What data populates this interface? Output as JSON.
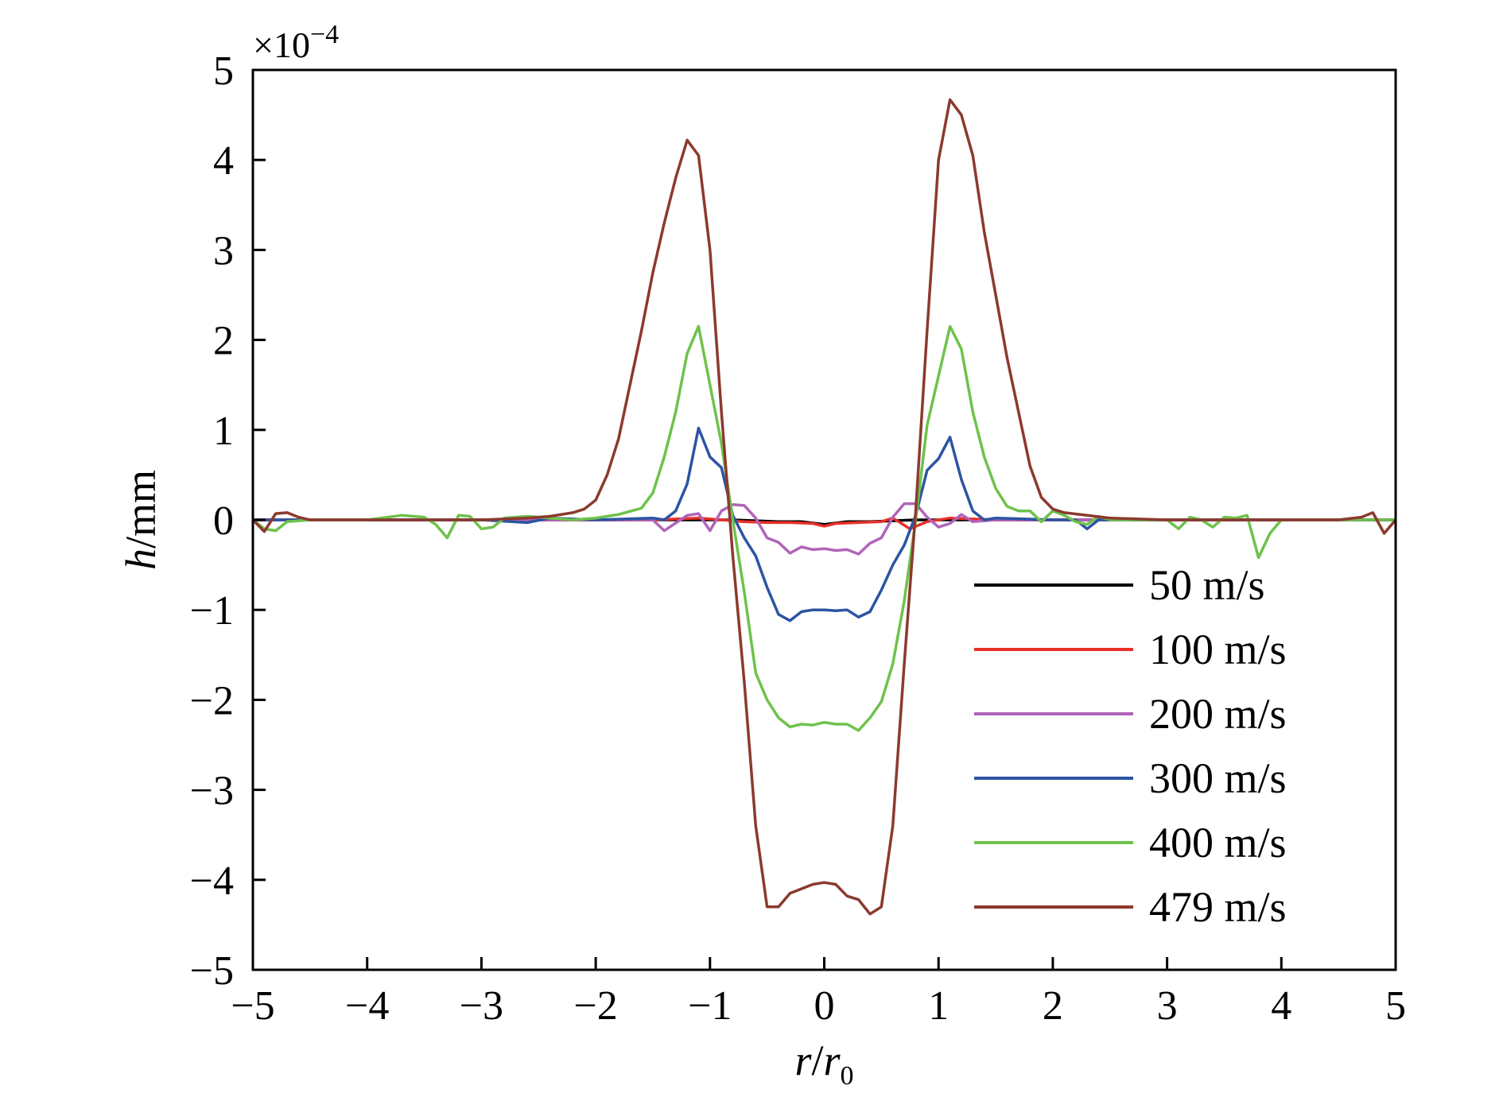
{
  "chart_data": {
    "type": "line",
    "xlabel": {
      "main": "r",
      "sep": "/",
      "sub_main": "r",
      "subscript": "0"
    },
    "ylabel": {
      "main": "h",
      "unit": "/mm"
    },
    "y_scale_note": {
      "base": "×10",
      "exponent": "−4"
    },
    "xlim": [
      -5,
      5
    ],
    "ylim": [
      -5,
      5
    ],
    "x_ticks": [
      -5,
      -4,
      -3,
      -2,
      -1,
      0,
      1,
      2,
      3,
      4,
      5
    ],
    "x_tick_labels": [
      "−5",
      "−4",
      "−3",
      "−2",
      "−1",
      "0",
      "1",
      "2",
      "3",
      "4",
      "5"
    ],
    "y_ticks": [
      -5,
      -4,
      -3,
      -2,
      -1,
      0,
      1,
      2,
      3,
      4,
      5
    ],
    "y_tick_labels": [
      "−5",
      "−4",
      "−3",
      "−2",
      "−1",
      "0",
      "1",
      "2",
      "3",
      "4",
      "5"
    ],
    "grid": false,
    "legend_position": "lower-right",
    "series": [
      {
        "name": "50 m/s",
        "color": "#000000",
        "points": [
          [
            -5,
            0
          ],
          [
            -4,
            0
          ],
          [
            -3,
            0
          ],
          [
            -2,
            0
          ],
          [
            -1.5,
            0
          ],
          [
            -1,
            0
          ],
          [
            -0.8,
            0.0
          ],
          [
            -0.6,
            -0.01
          ],
          [
            -0.4,
            -0.02
          ],
          [
            -0.2,
            -0.02
          ],
          [
            0,
            -0.05
          ],
          [
            0.2,
            -0.02
          ],
          [
            0.4,
            -0.02
          ],
          [
            0.6,
            -0.01
          ],
          [
            0.8,
            0
          ],
          [
            1,
            0
          ],
          [
            1.5,
            0
          ],
          [
            2,
            0
          ],
          [
            3,
            0
          ],
          [
            4,
            0
          ],
          [
            5,
            0
          ]
        ]
      },
      {
        "name": "100 m/s",
        "color": "#e8302a",
        "points": [
          [
            -5,
            0
          ],
          [
            -4,
            0
          ],
          [
            -3,
            0
          ],
          [
            -2,
            0
          ],
          [
            -1.5,
            0
          ],
          [
            -1.1,
            0.02
          ],
          [
            -0.9,
            0.0
          ],
          [
            -0.7,
            -0.02
          ],
          [
            -0.5,
            -0.03
          ],
          [
            -0.3,
            -0.03
          ],
          [
            -0.1,
            -0.04
          ],
          [
            0,
            -0.07
          ],
          [
            0.1,
            -0.04
          ],
          [
            0.3,
            -0.03
          ],
          [
            0.5,
            -0.02
          ],
          [
            0.6,
            0.02
          ],
          [
            0.75,
            -0.1
          ],
          [
            0.9,
            -0.02
          ],
          [
            1.1,
            0.02
          ],
          [
            1.5,
            0
          ],
          [
            2,
            0
          ],
          [
            3,
            0
          ],
          [
            4,
            0
          ],
          [
            5,
            0
          ]
        ]
      },
      {
        "name": "200 m/s",
        "color": "#b064b8",
        "points": [
          [
            -5,
            0
          ],
          [
            -3,
            0
          ],
          [
            -2,
            0
          ],
          [
            -1.5,
            0
          ],
          [
            -1.4,
            -0.12
          ],
          [
            -1.2,
            0.05
          ],
          [
            -1.1,
            0.07
          ],
          [
            -1.0,
            -0.12
          ],
          [
            -0.9,
            0.1
          ],
          [
            -0.8,
            0.17
          ],
          [
            -0.7,
            0.16
          ],
          [
            -0.6,
            0.02
          ],
          [
            -0.5,
            -0.2
          ],
          [
            -0.4,
            -0.25
          ],
          [
            -0.3,
            -0.37
          ],
          [
            -0.2,
            -0.3
          ],
          [
            -0.1,
            -0.33
          ],
          [
            0,
            -0.32
          ],
          [
            0.1,
            -0.34
          ],
          [
            0.2,
            -0.33
          ],
          [
            0.3,
            -0.38
          ],
          [
            0.4,
            -0.26
          ],
          [
            0.5,
            -0.2
          ],
          [
            0.6,
            0.03
          ],
          [
            0.7,
            0.18
          ],
          [
            0.8,
            0.18
          ],
          [
            0.9,
            0.03
          ],
          [
            1.0,
            -0.08
          ],
          [
            1.1,
            -0.04
          ],
          [
            1.2,
            0.06
          ],
          [
            1.3,
            -0.02
          ],
          [
            1.5,
            0
          ],
          [
            2,
            0
          ],
          [
            3,
            0
          ],
          [
            5,
            0
          ]
        ]
      },
      {
        "name": "300 m/s",
        "color": "#2d54a3",
        "points": [
          [
            -5,
            0
          ],
          [
            -4,
            0
          ],
          [
            -3.5,
            0
          ],
          [
            -3,
            0
          ],
          [
            -2.6,
            -0.03
          ],
          [
            -2.4,
            0.02
          ],
          [
            -2,
            0
          ],
          [
            -1.5,
            0.02
          ],
          [
            -1.4,
            0
          ],
          [
            -1.3,
            0.1
          ],
          [
            -1.2,
            0.4
          ],
          [
            -1.1,
            1.02
          ],
          [
            -1.0,
            0.7
          ],
          [
            -0.9,
            0.58
          ],
          [
            -0.8,
            0.05
          ],
          [
            -0.7,
            -0.2
          ],
          [
            -0.6,
            -0.4
          ],
          [
            -0.5,
            -0.75
          ],
          [
            -0.4,
            -1.05
          ],
          [
            -0.3,
            -1.12
          ],
          [
            -0.2,
            -1.02
          ],
          [
            -0.1,
            -1.0
          ],
          [
            0,
            -1.0
          ],
          [
            0.1,
            -1.01
          ],
          [
            0.2,
            -1.0
          ],
          [
            0.3,
            -1.08
          ],
          [
            0.4,
            -1.02
          ],
          [
            0.5,
            -0.78
          ],
          [
            0.6,
            -0.5
          ],
          [
            0.7,
            -0.28
          ],
          [
            0.8,
            0.05
          ],
          [
            0.9,
            0.55
          ],
          [
            1.0,
            0.68
          ],
          [
            1.1,
            0.92
          ],
          [
            1.2,
            0.45
          ],
          [
            1.3,
            0.1
          ],
          [
            1.4,
            0
          ],
          [
            1.5,
            0.02
          ],
          [
            2,
            0
          ],
          [
            2.2,
            0.0
          ],
          [
            2.3,
            -0.1
          ],
          [
            2.4,
            0
          ],
          [
            3,
            0
          ],
          [
            4,
            0
          ],
          [
            5,
            0
          ]
        ]
      },
      {
        "name": "400 m/s",
        "color": "#6ec24c",
        "points": [
          [
            -5,
            0
          ],
          [
            -4.9,
            -0.1
          ],
          [
            -4.8,
            -0.12
          ],
          [
            -4.7,
            -0.02
          ],
          [
            -4.5,
            0
          ],
          [
            -4,
            0
          ],
          [
            -3.7,
            0.05
          ],
          [
            -3.5,
            0.03
          ],
          [
            -3.4,
            -0.05
          ],
          [
            -3.3,
            -0.2
          ],
          [
            -3.2,
            0.05
          ],
          [
            -3.1,
            0.04
          ],
          [
            -3.0,
            -0.1
          ],
          [
            -2.9,
            -0.08
          ],
          [
            -2.8,
            0.02
          ],
          [
            -2.6,
            0.04
          ],
          [
            -2.4,
            0.02
          ],
          [
            -2.2,
            0.0
          ],
          [
            -2,
            0.02
          ],
          [
            -1.8,
            0.06
          ],
          [
            -1.6,
            0.13
          ],
          [
            -1.5,
            0.3
          ],
          [
            -1.4,
            0.7
          ],
          [
            -1.3,
            1.2
          ],
          [
            -1.2,
            1.85
          ],
          [
            -1.1,
            2.15
          ],
          [
            -1.0,
            1.5
          ],
          [
            -0.9,
            0.85
          ],
          [
            -0.8,
            0.0
          ],
          [
            -0.7,
            -0.8
          ],
          [
            -0.6,
            -1.7
          ],
          [
            -0.5,
            -2.0
          ],
          [
            -0.4,
            -2.2
          ],
          [
            -0.3,
            -2.3
          ],
          [
            -0.2,
            -2.27
          ],
          [
            -0.1,
            -2.28
          ],
          [
            0,
            -2.25
          ],
          [
            0.1,
            -2.27
          ],
          [
            0.2,
            -2.27
          ],
          [
            0.3,
            -2.34
          ],
          [
            0.4,
            -2.2
          ],
          [
            0.5,
            -2.02
          ],
          [
            0.6,
            -1.6
          ],
          [
            0.7,
            -0.9
          ],
          [
            0.8,
            0.0
          ],
          [
            0.9,
            1.05
          ],
          [
            1.0,
            1.6
          ],
          [
            1.1,
            2.15
          ],
          [
            1.2,
            1.9
          ],
          [
            1.3,
            1.2
          ],
          [
            1.4,
            0.7
          ],
          [
            1.5,
            0.35
          ],
          [
            1.6,
            0.15
          ],
          [
            1.7,
            0.1
          ],
          [
            1.8,
            0.1
          ],
          [
            1.9,
            -0.02
          ],
          [
            2.0,
            0.1
          ],
          [
            2.1,
            0.05
          ],
          [
            2.2,
            -0.02
          ],
          [
            2.3,
            -0.05
          ],
          [
            2.4,
            0.04
          ],
          [
            2.5,
            0
          ],
          [
            3,
            0
          ],
          [
            3.1,
            -0.1
          ],
          [
            3.2,
            0.03
          ],
          [
            3.3,
            0.0
          ],
          [
            3.4,
            -0.08
          ],
          [
            3.5,
            0.03
          ],
          [
            3.6,
            0.02
          ],
          [
            3.7,
            0.05
          ],
          [
            3.8,
            -0.42
          ],
          [
            3.9,
            -0.15
          ],
          [
            4.0,
            0
          ],
          [
            4.5,
            0
          ],
          [
            5,
            0
          ]
        ]
      },
      {
        "name": "479 m/s",
        "color": "#8b3a2e",
        "points": [
          [
            -5,
            0
          ],
          [
            -4.9,
            -0.13
          ],
          [
            -4.8,
            0.07
          ],
          [
            -4.7,
            0.08
          ],
          [
            -4.6,
            0.03
          ],
          [
            -4.5,
            0
          ],
          [
            -4,
            0
          ],
          [
            -3,
            0
          ],
          [
            -2.6,
            0.02
          ],
          [
            -2.4,
            0.04
          ],
          [
            -2.2,
            0.08
          ],
          [
            -2.1,
            0.12
          ],
          [
            -2.0,
            0.22
          ],
          [
            -1.9,
            0.5
          ],
          [
            -1.8,
            0.9
          ],
          [
            -1.7,
            1.5
          ],
          [
            -1.6,
            2.1
          ],
          [
            -1.5,
            2.75
          ],
          [
            -1.4,
            3.3
          ],
          [
            -1.3,
            3.8
          ],
          [
            -1.2,
            4.22
          ],
          [
            -1.1,
            4.05
          ],
          [
            -1.0,
            3.0
          ],
          [
            -0.9,
            1.2
          ],
          [
            -0.8,
            -0.4
          ],
          [
            -0.7,
            -1.8
          ],
          [
            -0.6,
            -3.4
          ],
          [
            -0.5,
            -4.3
          ],
          [
            -0.4,
            -4.3
          ],
          [
            -0.3,
            -4.15
          ],
          [
            -0.2,
            -4.1
          ],
          [
            -0.1,
            -4.05
          ],
          [
            0,
            -4.03
          ],
          [
            0.1,
            -4.05
          ],
          [
            0.2,
            -4.18
          ],
          [
            0.3,
            -4.22
          ],
          [
            0.4,
            -4.38
          ],
          [
            0.5,
            -4.3
          ],
          [
            0.6,
            -3.4
          ],
          [
            0.7,
            -1.6
          ],
          [
            0.8,
            0.1
          ],
          [
            0.9,
            2.1
          ],
          [
            1.0,
            4.0
          ],
          [
            1.1,
            4.67
          ],
          [
            1.2,
            4.5
          ],
          [
            1.3,
            4.05
          ],
          [
            1.4,
            3.2
          ],
          [
            1.5,
            2.5
          ],
          [
            1.6,
            1.8
          ],
          [
            1.7,
            1.2
          ],
          [
            1.8,
            0.6
          ],
          [
            1.9,
            0.25
          ],
          [
            2.0,
            0.12
          ],
          [
            2.1,
            0.08
          ],
          [
            2.3,
            0.05
          ],
          [
            2.5,
            0.02
          ],
          [
            3,
            0
          ],
          [
            4,
            0
          ],
          [
            4.5,
            0
          ],
          [
            4.7,
            0.03
          ],
          [
            4.8,
            0.08
          ],
          [
            4.9,
            -0.15
          ],
          [
            5,
            0
          ]
        ]
      }
    ]
  }
}
